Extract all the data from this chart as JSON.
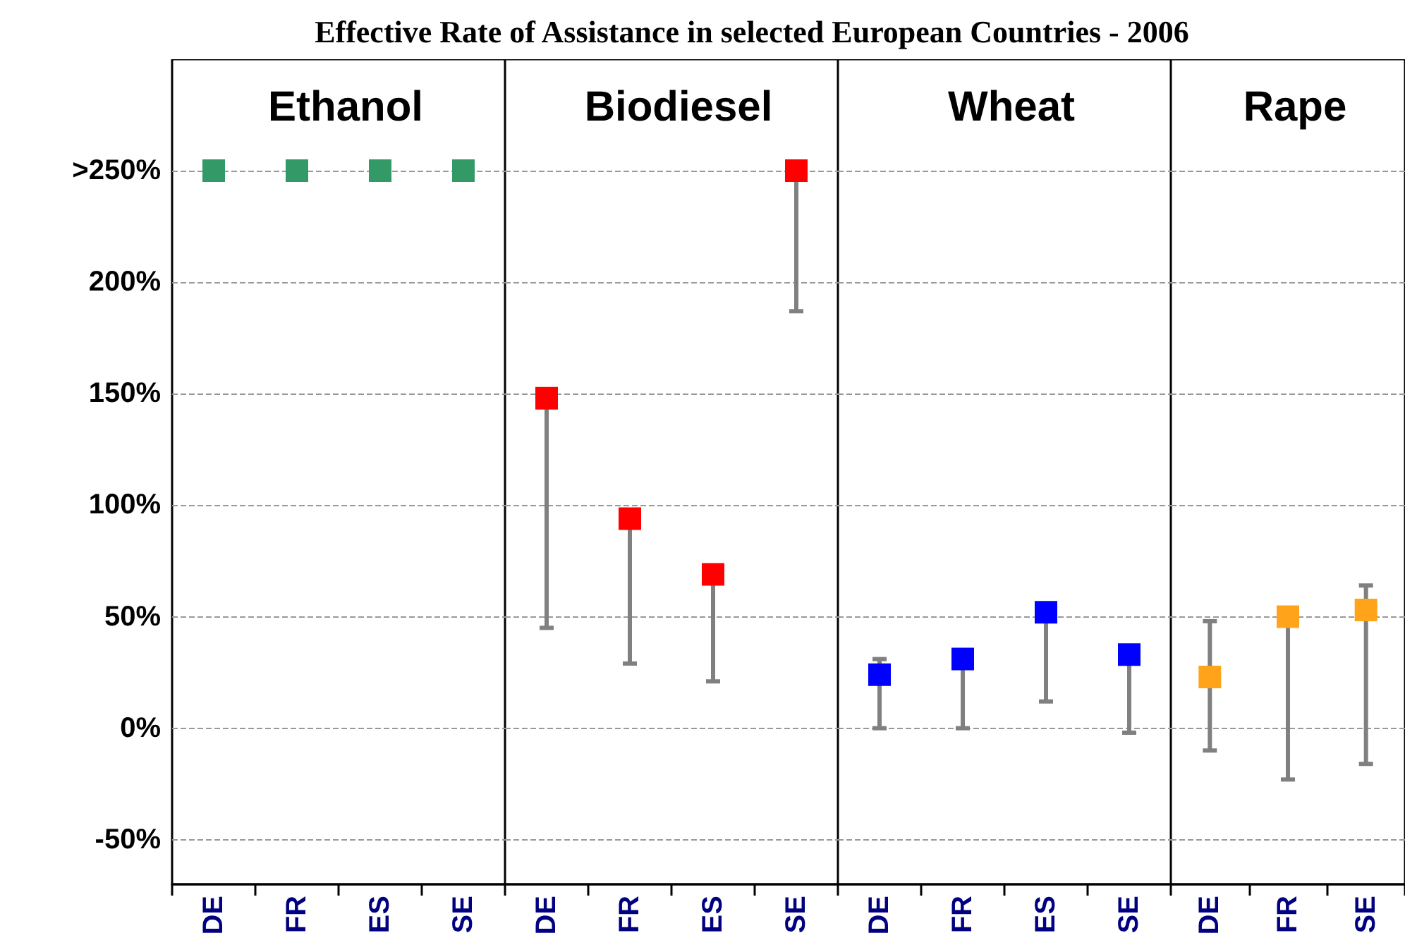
{
  "chart_data": [
    {
      "type": "scatter",
      "title": "Effective Rate of Assistance in selected European Countries - 2006",
      "subtitle": "Ethanol",
      "categories": [
        "DE",
        "FR",
        "ES",
        "SE"
      ],
      "marker": "square",
      "grid": "y",
      "ylim": [
        -70,
        300
      ],
      "yticks": [
        {
          "value": -50,
          "label": "-50%"
        },
        {
          "value": 0,
          "label": "0%"
        },
        {
          "value": 50,
          "label": "50%"
        },
        {
          "value": 100,
          "label": "100%"
        },
        {
          "value": 150,
          "label": "150%"
        },
        {
          "value": 200,
          "label": "200%"
        },
        {
          "value": 250,
          "label": ">250%"
        }
      ],
      "series": [
        {
          "color": "#339966",
          "values": [
            250,
            250,
            250,
            250
          ]
        }
      ]
    },
    {
      "type": "scatter",
      "subtitle": "Biodiesel",
      "categories": [
        "DE",
        "FR",
        "ES",
        "SE"
      ],
      "marker": "square",
      "grid": "y",
      "tick_labels": "x",
      "ylim": [
        -70,
        300
      ],
      "yticks": [
        -50,
        0,
        50,
        100,
        150,
        200,
        250
      ],
      "series": [
        {
          "color": "#ff0000",
          "values": [
            148,
            94,
            69,
            250
          ],
          "errors": [
            [
              45,
              148
            ],
            [
              29,
              94
            ],
            [
              21,
              69
            ],
            [
              187,
              250
            ]
          ]
        }
      ]
    },
    {
      "type": "scatter",
      "subtitle": "Wheat",
      "categories": [
        "DE",
        "FR",
        "ES",
        "SE"
      ],
      "marker": "square",
      "grid": "y",
      "tick_labels": "x",
      "ylim": [
        -70,
        300
      ],
      "yticks": [
        -50,
        0,
        50,
        100,
        150,
        200,
        250
      ],
      "series": [
        {
          "color": "#0000ff",
          "values": [
            24,
            31,
            52,
            33
          ],
          "errors": [
            [
              0,
              31
            ],
            [
              0,
              31
            ],
            [
              12,
              52
            ],
            [
              -2,
              33
            ]
          ]
        }
      ]
    },
    {
      "type": "scatter",
      "subtitle": "Rape",
      "categories": [
        "DE",
        "FR",
        "SE"
      ],
      "marker": "square",
      "grid": "y",
      "tick_labels": "x",
      "ylim": [
        -70,
        300
      ],
      "yticks": [
        -50,
        0,
        50,
        100,
        150,
        200,
        250
      ],
      "series": [
        {
          "color": "#ffa31a",
          "values": [
            23,
            50,
            53
          ],
          "errors": [
            [
              -10,
              48
            ],
            [
              -23,
              50
            ],
            [
              -16,
              64
            ]
          ]
        }
      ]
    }
  ]
}
